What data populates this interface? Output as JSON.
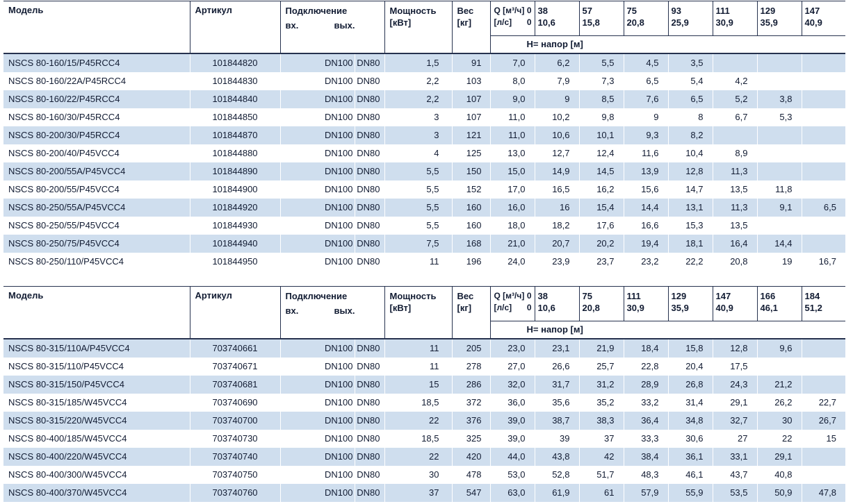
{
  "colors": {
    "row_stripe": "#cfdeee",
    "border": "#26324e",
    "text": "#121c33"
  },
  "header_labels": {
    "model": "Модель",
    "article": "Артикул",
    "connection": "Подключение",
    "inlet": "вх.",
    "outlet": "вых.",
    "power1": "Мощность",
    "power2": "[кВт]",
    "weight1": "Вес",
    "weight2": "[кг]",
    "q1": "Q [м³/ч]",
    "q2": "[л/с]",
    "q_zero": "0",
    "head_row": "Н= напор [м]"
  },
  "tables": [
    {
      "flows_m3h": [
        "38",
        "57",
        "75",
        "93",
        "111",
        "129",
        "147"
      ],
      "flows_ls": [
        "10,6",
        "15,8",
        "20,8",
        "25,9",
        "30,9",
        "35,9",
        "40,9"
      ],
      "rows": [
        {
          "model": "NSCS 80-160/15/P45RCC4",
          "article": "101844820",
          "inlet": "DN100",
          "outlet": "DN80",
          "power": "1,5",
          "weight": "91",
          "heads": [
            "7,0",
            "6,2",
            "5,5",
            "4,5",
            "3,5",
            "",
            "",
            ""
          ]
        },
        {
          "model": "NSCS 80-160/22A/P45RCC4",
          "article": "101844830",
          "inlet": "DN100",
          "outlet": "DN80",
          "power": "2,2",
          "weight": "103",
          "heads": [
            "8,0",
            "7,9",
            "7,3",
            "6,5",
            "5,4",
            "4,2",
            "",
            ""
          ]
        },
        {
          "model": "NSCS 80-160/22/P45RCC4",
          "article": "101844840",
          "inlet": "DN100",
          "outlet": "DN80",
          "power": "2,2",
          "weight": "107",
          "heads": [
            "9,0",
            "9",
            "8,5",
            "7,6",
            "6,5",
            "5,2",
            "3,8",
            ""
          ]
        },
        {
          "model": "NSCS 80-160/30/P45RCC4",
          "article": "101844850",
          "inlet": "DN100",
          "outlet": "DN80",
          "power": "3",
          "weight": "107",
          "heads": [
            "11,0",
            "10,2",
            "9,8",
            "9",
            "8",
            "6,7",
            "5,3",
            ""
          ]
        },
        {
          "model": "NSCS 80-200/30/P45RCC4",
          "article": "101844870",
          "inlet": "DN100",
          "outlet": "DN80",
          "power": "3",
          "weight": "121",
          "heads": [
            "11,0",
            "10,6",
            "10,1",
            "9,3",
            "8,2",
            "",
            "",
            ""
          ]
        },
        {
          "model": "NSCS 80-200/40/P45VCC4",
          "article": "101844880",
          "inlet": "DN100",
          "outlet": "DN80",
          "power": "4",
          "weight": "125",
          "heads": [
            "13,0",
            "12,7",
            "12,4",
            "11,6",
            "10,4",
            "8,9",
            "",
            ""
          ]
        },
        {
          "model": "NSCS 80-200/55A/P45VCC4",
          "article": "101844890",
          "inlet": "DN100",
          "outlet": "DN80",
          "power": "5,5",
          "weight": "150",
          "heads": [
            "15,0",
            "14,9",
            "14,5",
            "13,9",
            "12,8",
            "11,3",
            "",
            ""
          ]
        },
        {
          "model": "NSCS 80-200/55/P45VCC4",
          "article": "101844900",
          "inlet": "DN100",
          "outlet": "DN80",
          "power": "5,5",
          "weight": "152",
          "heads": [
            "17,0",
            "16,5",
            "16,2",
            "15,6",
            "14,7",
            "13,5",
            "11,8",
            ""
          ]
        },
        {
          "model": "NSCS 80-250/55A/P45VCC4",
          "article": "101844920",
          "inlet": "DN100",
          "outlet": "DN80",
          "power": "5,5",
          "weight": "160",
          "heads": [
            "16,0",
            "16",
            "15,4",
            "14,4",
            "13,1",
            "11,3",
            "9,1",
            "6,5"
          ]
        },
        {
          "model": "NSCS 80-250/55/P45VCC4",
          "article": "101844930",
          "inlet": "DN100",
          "outlet": "DN80",
          "power": "5,5",
          "weight": "160",
          "heads": [
            "18,0",
            "18,2",
            "17,6",
            "16,6",
            "15,3",
            "13,5",
            "",
            ""
          ]
        },
        {
          "model": "NSCS 80-250/75/P45VCC4",
          "article": "101844940",
          "inlet": "DN100",
          "outlet": "DN80",
          "power": "7,5",
          "weight": "168",
          "heads": [
            "21,0",
            "20,7",
            "20,2",
            "19,4",
            "18,1",
            "16,4",
            "14,4",
            ""
          ]
        },
        {
          "model": "NSCS 80-250/110/P45VCC4",
          "article": "101844950",
          "inlet": "DN100",
          "outlet": "DN80",
          "power": "11",
          "weight": "196",
          "heads": [
            "24,0",
            "23,9",
            "23,7",
            "23,2",
            "22,2",
            "20,8",
            "19",
            "16,7"
          ]
        }
      ]
    },
    {
      "flows_m3h": [
        "38",
        "75",
        "111",
        "129",
        "147",
        "166",
        "184"
      ],
      "flows_ls": [
        "10,6",
        "20,8",
        "30,9",
        "35,9",
        "40,9",
        "46,1",
        "51,2"
      ],
      "rows": [
        {
          "model": "NSCS 80-315/110A/P45VCC4",
          "article": "703740661",
          "inlet": "DN100",
          "outlet": "DN80",
          "power": "11",
          "weight": "205",
          "heads": [
            "23,0",
            "23,1",
            "21,9",
            "18,4",
            "15,8",
            "12,8",
            "9,6",
            ""
          ]
        },
        {
          "model": "NSCS 80-315/110/P45VCC4",
          "article": "703740671",
          "inlet": "DN100",
          "outlet": "DN80",
          "power": "11",
          "weight": "278",
          "heads": [
            "27,0",
            "26,6",
            "25,7",
            "22,8",
            "20,4",
            "17,5",
            "",
            ""
          ]
        },
        {
          "model": "NSCS 80-315/150/P45VCC4",
          "article": "703740681",
          "inlet": "DN100",
          "outlet": "DN80",
          "power": "15",
          "weight": "286",
          "heads": [
            "32,0",
            "31,7",
            "31,2",
            "28,9",
            "26,8",
            "24,3",
            "21,2",
            ""
          ]
        },
        {
          "model": "NSCS 80-315/185/W45VCC4",
          "article": "703740690",
          "inlet": "DN100",
          "outlet": "DN80",
          "power": "18,5",
          "weight": "372",
          "heads": [
            "36,0",
            "35,6",
            "35,2",
            "33,2",
            "31,4",
            "29,1",
            "26,2",
            "22,7"
          ]
        },
        {
          "model": "NSCS 80-315/220/W45VCC4",
          "article": "703740700",
          "inlet": "DN100",
          "outlet": "DN80",
          "power": "22",
          "weight": "376",
          "heads": [
            "39,0",
            "38,7",
            "38,3",
            "36,4",
            "34,8",
            "32,7",
            "30",
            "26,7"
          ]
        },
        {
          "model": "NSCS 80-400/185/W45VCC4",
          "article": "703740730",
          "inlet": "DN100",
          "outlet": "DN80",
          "power": "18,5",
          "weight": "325",
          "heads": [
            "39,0",
            "39",
            "37",
            "33,3",
            "30,6",
            "27",
            "22",
            "15"
          ]
        },
        {
          "model": "NSCS 80-400/220/W45VCC4",
          "article": "703740740",
          "inlet": "DN100",
          "outlet": "DN80",
          "power": "22",
          "weight": "420",
          "heads": [
            "44,0",
            "43,8",
            "42",
            "38,4",
            "36,1",
            "33,1",
            "29,1",
            ""
          ]
        },
        {
          "model": "NSCS 80-400/300/W45VCC4",
          "article": "703740750",
          "inlet": "DN100",
          "outlet": "DN80",
          "power": "30",
          "weight": "478",
          "heads": [
            "53,0",
            "52,8",
            "51,7",
            "48,3",
            "46,1",
            "43,7",
            "40,8",
            ""
          ]
        },
        {
          "model": "NSCS 80-400/370/W45VCC4",
          "article": "703740760",
          "inlet": "DN100",
          "outlet": "DN80",
          "power": "37",
          "weight": "547",
          "heads": [
            "63,0",
            "61,9",
            "61",
            "57,9",
            "55,9",
            "53,5",
            "50,9",
            "47,8"
          ]
        }
      ]
    }
  ]
}
